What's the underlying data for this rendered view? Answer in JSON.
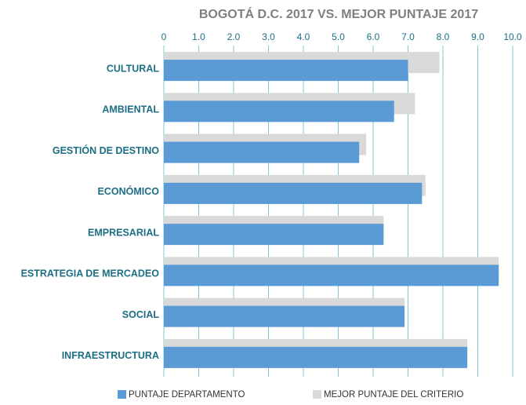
{
  "chart_data": {
    "type": "bar",
    "orientation": "horizontal",
    "title": "BOGOTÁ D.C. 2017 VS. MEJOR PUNTAJE 2017",
    "categories": [
      "CULTURAL",
      "AMBIENTAL",
      "GESTIÓN DE DESTINO",
      "ECONÓMICO",
      "EMPRESARIAL",
      "ESTRATEGIA DE MERCADEO",
      "SOCIAL",
      "INFRAESTRUCTURA"
    ],
    "series": [
      {
        "name": "MEJOR PUNTAJE DEL CRITERIO",
        "color": "#d9d9d9",
        "values": [
          7.9,
          7.2,
          5.8,
          7.5,
          6.3,
          9.6,
          6.9,
          8.7
        ]
      },
      {
        "name": "PUNTAJE DEPARTAMENTO",
        "color": "#5b9bd5",
        "values": [
          7.0,
          6.6,
          5.6,
          7.4,
          6.3,
          9.6,
          6.9,
          8.7
        ]
      }
    ],
    "xlim": [
      0,
      10
    ],
    "xticks": [
      0,
      {
        "value": 1,
        "label": "1.0"
      },
      {
        "value": 2,
        "label": "2.0"
      },
      {
        "value": 3,
        "label": "3.0"
      },
      {
        "value": 4,
        "label": "4.0"
      },
      {
        "value": 5,
        "label": "5.0"
      },
      {
        "value": 6,
        "label": "6.0"
      },
      {
        "value": 7,
        "label": "7.0"
      },
      {
        "value": 8,
        "label": "8.0"
      },
      {
        "value": 9,
        "label": "9.0"
      },
      {
        "value": 10,
        "label": "10.0"
      }
    ],
    "grid": true,
    "legend": "bottom"
  }
}
